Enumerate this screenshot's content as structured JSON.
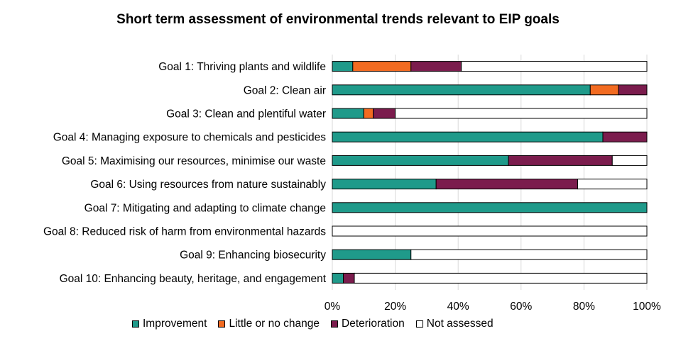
{
  "chart_data": {
    "type": "bar",
    "orientation": "horizontal",
    "stacked": true,
    "title": "Short term assessment of environmental trends relevant to EIP goals",
    "categories": [
      "Goal 1: Thriving plants and wildlife",
      "Goal 2: Clean air",
      "Goal 3: Clean and plentiful water",
      "Goal 4: Managing exposure to chemicals and pesticides",
      "Goal 5: Maximising our resources, minimise our waste",
      "Goal 6: Using resources from nature sustainably",
      "Goal 7: Mitigating and adapting to climate change",
      "Goal 8: Reduced risk of harm from environmental hazards",
      "Goal 9: Enhancing biosecurity",
      "Goal 10: Enhancing beauty, heritage, and engagement"
    ],
    "series": [
      {
        "name": "Improvement",
        "color": "#1f9a8a",
        "values": [
          6.5,
          82,
          10,
          86,
          56,
          33,
          100,
          0,
          25,
          3.5
        ]
      },
      {
        "name": "Little or no change",
        "color": "#f26b21",
        "values": [
          18.5,
          9,
          3,
          0,
          0,
          0,
          0,
          0,
          0,
          0
        ]
      },
      {
        "name": "Deterioration",
        "color": "#7b1c4d",
        "values": [
          16,
          9,
          7,
          14,
          33,
          45,
          0,
          0,
          0,
          3.5
        ]
      },
      {
        "name": "Not assessed",
        "color": "#ffffff",
        "values": [
          59,
          0,
          80,
          0,
          11,
          22,
          0,
          100,
          75,
          93
        ]
      }
    ],
    "xlim": [
      0,
      100
    ],
    "xticks": [
      "0%",
      "20%",
      "40%",
      "60%",
      "80%",
      "100%"
    ],
    "xlabel": "",
    "ylabel": "",
    "grid": true,
    "legend_position": "bottom"
  }
}
